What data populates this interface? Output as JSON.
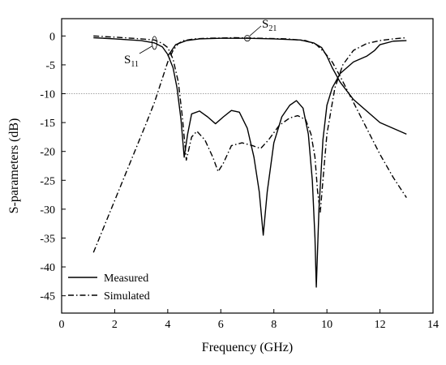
{
  "chart_data": {
    "type": "line",
    "title": "",
    "xlabel": "Frequency (GHz)",
    "ylabel": "S-parameters (dB)",
    "xlim": [
      0,
      14
    ],
    "ylim": [
      -48,
      3
    ],
    "xticks": [
      0,
      2,
      4,
      6,
      8,
      10,
      12,
      14
    ],
    "yticks": [
      0,
      -5,
      -10,
      -15,
      -20,
      -25,
      -30,
      -35,
      -40,
      -45
    ],
    "reference_line": {
      "y": -10,
      "style": "dotted",
      "color": "#888888"
    },
    "legend": {
      "position": "bottom-left",
      "entries": [
        "Measured",
        "Simulated"
      ]
    },
    "annotations": [
      {
        "label": "S",
        "sub": "11",
        "point": [
          3.5,
          -1.2
        ]
      },
      {
        "label": "S",
        "sub": "21",
        "point": [
          7.0,
          -0.4
        ]
      }
    ],
    "series": [
      {
        "name": "Measured",
        "style": "solid",
        "curves": [
          {
            "param": "S11",
            "x": [
              1.2,
              2.0,
              3.0,
              3.5,
              3.8,
              4.0,
              4.2,
              4.35,
              4.5,
              4.62,
              4.75,
              4.9,
              5.2,
              5.5,
              5.8,
              6.1,
              6.4,
              6.7,
              7.0,
              7.25,
              7.45,
              7.6,
              7.75,
              8.0,
              8.3,
              8.6,
              8.85,
              9.1,
              9.3,
              9.45,
              9.55,
              9.6,
              9.7,
              9.85,
              10.0,
              10.2,
              10.5,
              11.0,
              11.5,
              11.8,
              12.0,
              12.5,
              13.0
            ],
            "y": [
              -0.3,
              -0.5,
              -0.8,
              -1.2,
              -1.9,
              -3.2,
              -5.5,
              -9.0,
              -14.5,
              -21.0,
              -17.0,
              -13.5,
              -13.0,
              -14.0,
              -15.2,
              -14.0,
              -12.9,
              -13.2,
              -16.0,
              -21.0,
              -27.0,
              -34.5,
              -27.0,
              -18.5,
              -14.0,
              -12.0,
              -11.2,
              -12.5,
              -17.0,
              -25.0,
              -35.0,
              -43.5,
              -30.0,
              -18.0,
              -12.0,
              -9.0,
              -6.5,
              -4.5,
              -3.5,
              -2.5,
              -1.5,
              -0.9,
              -0.8
            ]
          },
          {
            "param": "S21",
            "x": [
              4.0,
              4.3,
              4.7,
              5.2,
              6.0,
              7.0,
              8.0,
              9.0,
              9.5,
              9.8,
              10.0,
              10.2,
              10.5,
              11.0,
              12.0,
              13.0
            ],
            "y": [
              -3.5,
              -1.5,
              -0.8,
              -0.5,
              -0.4,
              -0.4,
              -0.5,
              -0.7,
              -1.2,
              -2.0,
              -3.5,
              -5.5,
              -8.0,
              -11.0,
              -15.0,
              -17.0
            ]
          }
        ]
      },
      {
        "name": "Simulated",
        "style": "dashdot",
        "curves": [
          {
            "param": "S11",
            "x": [
              1.2,
              2.0,
              3.0,
              3.5,
              3.8,
              4.0,
              4.2,
              4.4,
              4.55,
              4.7,
              4.9,
              5.1,
              5.4,
              5.7,
              5.9,
              6.1,
              6.4,
              6.8,
              7.2,
              7.5,
              7.8,
              8.2,
              8.6,
              8.9,
              9.2,
              9.4,
              9.55,
              9.65,
              9.75,
              9.85,
              10.0,
              10.3,
              10.6,
              11.0,
              11.5,
              12.0,
              12.5,
              13.0
            ],
            "y": [
              0.0,
              -0.2,
              -0.5,
              -0.7,
              -1.3,
              -2.0,
              -4.0,
              -8.0,
              -14.0,
              -21.5,
              -17.5,
              -16.5,
              -18.0,
              -21.0,
              -23.5,
              -22.0,
              -19.0,
              -18.5,
              -19.0,
              -19.5,
              -18.0,
              -15.5,
              -14.2,
              -13.8,
              -14.5,
              -17.0,
              -21.0,
              -27.0,
              -30.5,
              -25.0,
              -17.0,
              -9.0,
              -5.0,
              -2.5,
              -1.3,
              -0.8,
              -0.5,
              -0.3
            ]
          },
          {
            "param": "S21",
            "x": [
              1.2,
              1.6,
              2.0,
              2.4,
              2.8,
              3.2,
              3.5,
              3.75,
              4.0,
              4.2,
              4.4,
              4.6,
              5.0,
              5.5,
              6.5,
              7.5,
              8.5,
              9.2,
              9.6,
              9.9,
              10.2,
              10.5,
              11.0,
              11.5,
              12.0,
              12.5,
              13.0
            ],
            "y": [
              -37.5,
              -33.0,
              -28.5,
              -24.0,
              -19.5,
              -15.0,
              -11.5,
              -8.0,
              -4.5,
              -2.5,
              -1.3,
              -0.8,
              -0.5,
              -0.4,
              -0.3,
              -0.4,
              -0.5,
              -0.8,
              -1.5,
              -2.8,
              -4.5,
              -7.0,
              -11.5,
              -16.0,
              -20.5,
              -24.5,
              -28.0
            ]
          }
        ]
      }
    ]
  }
}
